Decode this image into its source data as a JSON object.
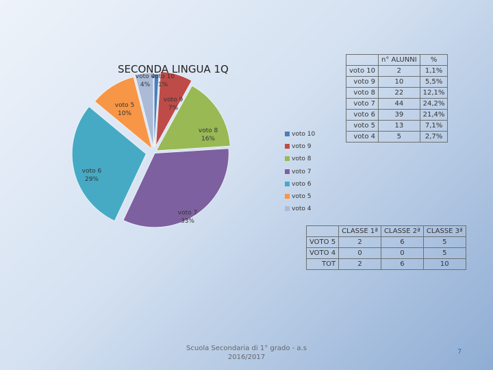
{
  "chart_data": {
    "type": "pie",
    "title": "SECONDA LINGUA 1Q",
    "labels": [
      "voto 10",
      "voto 9",
      "voto 8",
      "voto 7",
      "voto 6",
      "voto 5",
      "voto 4"
    ],
    "slice_labels": [
      {
        "name": "voto 10",
        "pct": "1%"
      },
      {
        "name": "voto 9",
        "pct": "7%"
      },
      {
        "name": "voto 8",
        "pct": "16%"
      },
      {
        "name": "voto 7",
        "pct": "33%"
      },
      {
        "name": "voto 6",
        "pct": "29%"
      },
      {
        "name": "voto 5",
        "pct": "10%"
      },
      {
        "name": "voto 4",
        "pct": "4%"
      }
    ],
    "values": [
      1,
      7,
      16,
      33,
      29,
      10,
      4
    ],
    "colors": [
      "#4a7ebb",
      "#be4b48",
      "#98b954",
      "#7d60a0",
      "#46aac5",
      "#f79646",
      "#aabad7"
    ],
    "legend": [
      "voto 10",
      "voto 9",
      "voto 8",
      "voto 7",
      "voto 6",
      "voto 5",
      "voto 4"
    ],
    "legend_position": "right",
    "style": "exploded"
  },
  "table_alunni": {
    "headers": [
      "",
      "n° ALUNNI",
      "%"
    ],
    "rows": [
      [
        "voto 10",
        "2",
        "1,1%"
      ],
      [
        "voto 9",
        "10",
        "5,5%"
      ],
      [
        "voto 8",
        "22",
        "12,1%"
      ],
      [
        "voto 7",
        "44",
        "24,2%"
      ],
      [
        "voto 6",
        "39",
        "21,4%"
      ],
      [
        "voto 5",
        "13",
        "7,1%"
      ],
      [
        "voto 4",
        "5",
        "2,7%"
      ]
    ]
  },
  "table_classi": {
    "headers": [
      "",
      "CLASSE 1ª",
      "CLASSE 2ª",
      "CLASSE 3ª"
    ],
    "rows": [
      [
        "VOTO 5",
        "2",
        "6",
        "5"
      ],
      [
        "VOTO 4",
        "0",
        "0",
        "5"
      ],
      [
        "TOT",
        "2",
        "6",
        "10"
      ]
    ]
  },
  "footer": {
    "line1": "Scuola Secondaria di 1° grado - a.s",
    "line2": "2016/2017"
  },
  "page_number": "7"
}
